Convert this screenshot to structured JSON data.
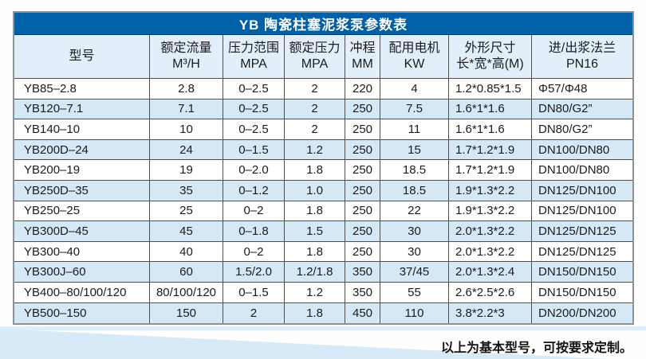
{
  "table": {
    "title": "YB 陶瓷柱塞泥浆泵参数表",
    "columns": [
      {
        "line1": "型号",
        "line2": ""
      },
      {
        "line1": "额定流量",
        "line2": "M³/H"
      },
      {
        "line1": "压力范围",
        "line2": "MPA"
      },
      {
        "line1": "额定压力",
        "line2": "MPA"
      },
      {
        "line1": "冲程",
        "line2": "MM"
      },
      {
        "line1": "配用电机",
        "line2": "KW"
      },
      {
        "line1": "外形尺寸",
        "line2": "长*宽*高(M)"
      },
      {
        "line1": "进/出浆法兰",
        "line2": "PN16"
      }
    ],
    "rows": [
      {
        "model": "YB85–2.8",
        "flow": "2.8",
        "pressure_range": "0–2.5",
        "rated_pressure": "2",
        "stroke": "220",
        "motor": "4",
        "dimensions": "1.2*0.85*1.5",
        "flange": "Φ57/Φ48"
      },
      {
        "model": "YB120–7.1",
        "flow": "7.1",
        "pressure_range": "0–2.5",
        "rated_pressure": "2",
        "stroke": "250",
        "motor": "7.5",
        "dimensions": "1.6*1*1.6",
        "flange": "DN80/G2”"
      },
      {
        "model": "YB140–10",
        "flow": "10",
        "pressure_range": "0–2.5",
        "rated_pressure": "2",
        "stroke": "250",
        "motor": "11",
        "dimensions": "1.6*1*1.6",
        "flange": "DN80/G2”"
      },
      {
        "model": "YB200D–24",
        "flow": "24",
        "pressure_range": "0–1.5",
        "rated_pressure": "1.2",
        "stroke": "250",
        "motor": "15",
        "dimensions": "1.7*1.2*1.9",
        "flange": "DN100/DN80"
      },
      {
        "model": "YB200–19",
        "flow": "19",
        "pressure_range": "0–2.0",
        "rated_pressure": "1.8",
        "stroke": "250",
        "motor": "18.5",
        "dimensions": "1.7*1.2*1.9",
        "flange": "DN100/DN80"
      },
      {
        "model": "YB250D–35",
        "flow": "35",
        "pressure_range": "0–1.2",
        "rated_pressure": "1.0",
        "stroke": "250",
        "motor": "18.5",
        "dimensions": "1.9*1.3*2.2",
        "flange": "DN125/DN100"
      },
      {
        "model": "YB250–25",
        "flow": "25",
        "pressure_range": "0–2",
        "rated_pressure": "1.8",
        "stroke": "250",
        "motor": "22",
        "dimensions": "1.9*1.3*2.2",
        "flange": "DN125/DN100"
      },
      {
        "model": "YB300D–45",
        "flow": "45",
        "pressure_range": "0–1.8",
        "rated_pressure": "1.5",
        "stroke": "250",
        "motor": "30",
        "dimensions": "2.0*1.3*2.2",
        "flange": "DN125/DN125"
      },
      {
        "model": "YB300–40",
        "flow": "40",
        "pressure_range": "0–2",
        "rated_pressure": "1.8",
        "stroke": "250",
        "motor": "30",
        "dimensions": "2.0*1.3*2.2",
        "flange": "DN125/DN125"
      },
      {
        "model": "YB300J–60",
        "flow": "60",
        "pressure_range": "1.5/2.0",
        "rated_pressure": "1.2/1.8",
        "stroke": "350",
        "motor": "37/45",
        "dimensions": "2.0*1.3*2.4",
        "flange": "DN150/DN150"
      },
      {
        "model": "YB400–80/100/120",
        "flow": "80/100/120",
        "pressure_range": "0–1.5",
        "rated_pressure": "1.2",
        "stroke": "350",
        "motor": "55",
        "dimensions": "2.6*2.5*2.6",
        "flange": "DN150/DN150"
      },
      {
        "model": "YB500–150",
        "flow": "150",
        "pressure_range": "2",
        "rated_pressure": "1.8",
        "stroke": "450",
        "motor": "110",
        "dimensions": "3.8*2.2*3",
        "flange": "DN200/DN200"
      }
    ]
  },
  "footer": {
    "note": "以上为基本型号，可按要求定制。"
  },
  "colors": {
    "title_bar_blue": "#0061a8",
    "header_row_blue": "#e2effa",
    "alt_row_blue": "#d5e8f6",
    "grid_line": "#4e4e4e",
    "outer_border": "#8f9193",
    "decor_blue": "#d7eaf8"
  }
}
